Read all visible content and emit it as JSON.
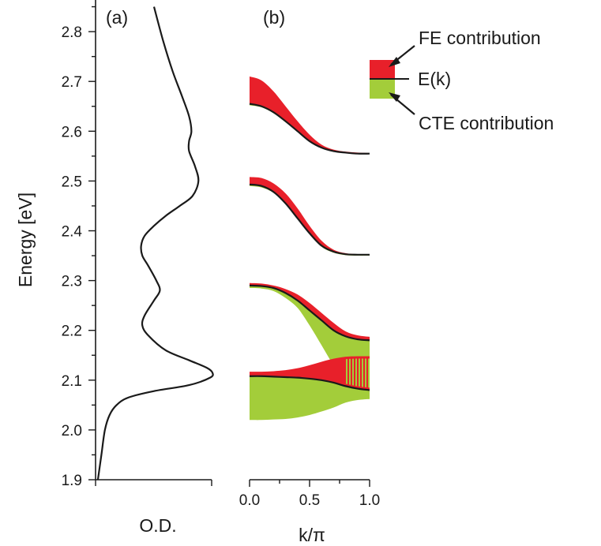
{
  "chart_data": [
    {
      "panel": "a",
      "panel_label": "(a)",
      "type": "line",
      "xlabel": "O.D.",
      "ylabel": "Energy [eV]",
      "ylim": [
        1.9,
        2.85
      ],
      "y_ticks": [
        "1.9",
        "2.0",
        "2.1",
        "2.2",
        "2.3",
        "2.4",
        "2.5",
        "2.6",
        "2.7",
        "2.8"
      ],
      "series": [
        {
          "od": [
            0.02,
            0.05,
            0.08,
            0.12,
            0.18,
            0.28,
            0.5,
            0.8,
            0.98,
            1.0,
            0.95,
            0.8,
            0.6,
            0.45,
            0.4,
            0.42,
            0.5,
            0.55,
            0.52,
            0.45,
            0.4,
            0.39,
            0.42,
            0.5,
            0.6,
            0.72,
            0.83,
            0.88,
            0.85,
            0.8,
            0.8,
            0.82,
            0.8,
            0.74,
            0.66,
            0.58,
            0.5
          ],
          "energy": [
            1.9,
            1.95,
            2.0,
            2.03,
            2.05,
            2.065,
            2.078,
            2.09,
            2.105,
            2.115,
            2.125,
            2.14,
            2.16,
            2.19,
            2.21,
            2.23,
            2.26,
            2.28,
            2.3,
            2.33,
            2.35,
            2.37,
            2.39,
            2.41,
            2.43,
            2.45,
            2.47,
            2.5,
            2.53,
            2.56,
            2.58,
            2.6,
            2.63,
            2.67,
            2.72,
            2.78,
            2.85
          ]
        }
      ]
    },
    {
      "panel": "b",
      "panel_label": "(b)",
      "type": "area",
      "xlabel": "k/π",
      "xlim": [
        0,
        1
      ],
      "x_ticks": [
        "0.0",
        "0.5",
        "1.0"
      ],
      "ylim": [
        1.9,
        2.85
      ],
      "bands": [
        {
          "k": [
            0,
            0.1,
            0.2,
            0.3,
            0.4,
            0.5,
            0.6,
            0.7,
            0.8,
            0.9,
            1.0
          ],
          "ek": [
            2.655,
            2.65,
            2.638,
            2.62,
            2.6,
            2.58,
            2.567,
            2.56,
            2.557,
            2.555,
            2.555
          ],
          "fe_upper": [
            2.71,
            2.702,
            2.68,
            2.65,
            2.62,
            2.593,
            2.573,
            2.563,
            2.559,
            2.557,
            2.556
          ],
          "cte_lower": [
            2.652,
            2.648,
            2.636,
            2.618,
            2.599,
            2.579,
            2.566,
            2.559,
            2.556,
            2.554,
            2.554
          ]
        },
        {
          "k": [
            0,
            0.1,
            0.2,
            0.3,
            0.4,
            0.5,
            0.6,
            0.7,
            0.8,
            0.9,
            1.0
          ],
          "ek": [
            2.493,
            2.49,
            2.478,
            2.455,
            2.425,
            2.395,
            2.37,
            2.358,
            2.353,
            2.352,
            2.352
          ],
          "fe_upper": [
            2.508,
            2.506,
            2.495,
            2.475,
            2.445,
            2.41,
            2.38,
            2.362,
            2.355,
            2.353,
            2.353
          ],
          "cte_lower": [
            2.49,
            2.487,
            2.476,
            2.453,
            2.423,
            2.393,
            2.368,
            2.356,
            2.351,
            2.35,
            2.35
          ]
        },
        {
          "k": [
            0,
            0.1,
            0.2,
            0.3,
            0.4,
            0.5,
            0.6,
            0.7,
            0.8,
            0.9,
            1.0
          ],
          "ek": [
            2.29,
            2.289,
            2.285,
            2.275,
            2.26,
            2.24,
            2.22,
            2.2,
            2.188,
            2.182,
            2.18
          ],
          "fe_upper": [
            2.295,
            2.294,
            2.29,
            2.283,
            2.272,
            2.255,
            2.235,
            2.215,
            2.198,
            2.19,
            2.187
          ],
          "cte_lower": [
            2.285,
            2.284,
            2.279,
            2.265,
            2.245,
            2.21,
            2.17,
            2.13,
            2.1,
            2.09,
            2.088
          ]
        },
        {
          "k": [
            0,
            0.1,
            0.2,
            0.3,
            0.4,
            0.5,
            0.6,
            0.7,
            0.8,
            0.9,
            1.0
          ],
          "ek": [
            2.108,
            2.108,
            2.107,
            2.106,
            2.105,
            2.103,
            2.1,
            2.095,
            2.088,
            2.083,
            2.08
          ],
          "fe_upper": [
            2.117,
            2.117,
            2.118,
            2.12,
            2.124,
            2.13,
            2.137,
            2.143,
            2.147,
            2.148,
            2.148
          ],
          "cte_lower": [
            2.02,
            2.02,
            2.021,
            2.022,
            2.025,
            2.03,
            2.037,
            2.045,
            2.055,
            2.06,
            2.062
          ],
          "overlap_hatch_k_range": [
            0.8,
            1.0
          ]
        }
      ],
      "legend": {
        "fe_label": "FE contribution",
        "ek_label": "E(k)",
        "cte_label": "CTE contribution",
        "placement": "top-right"
      }
    }
  ],
  "colors": {
    "fe": "#e8202a",
    "cte": "#a3cd3a",
    "line": "#1a1a1a",
    "hatch": "#d99a2a"
  }
}
